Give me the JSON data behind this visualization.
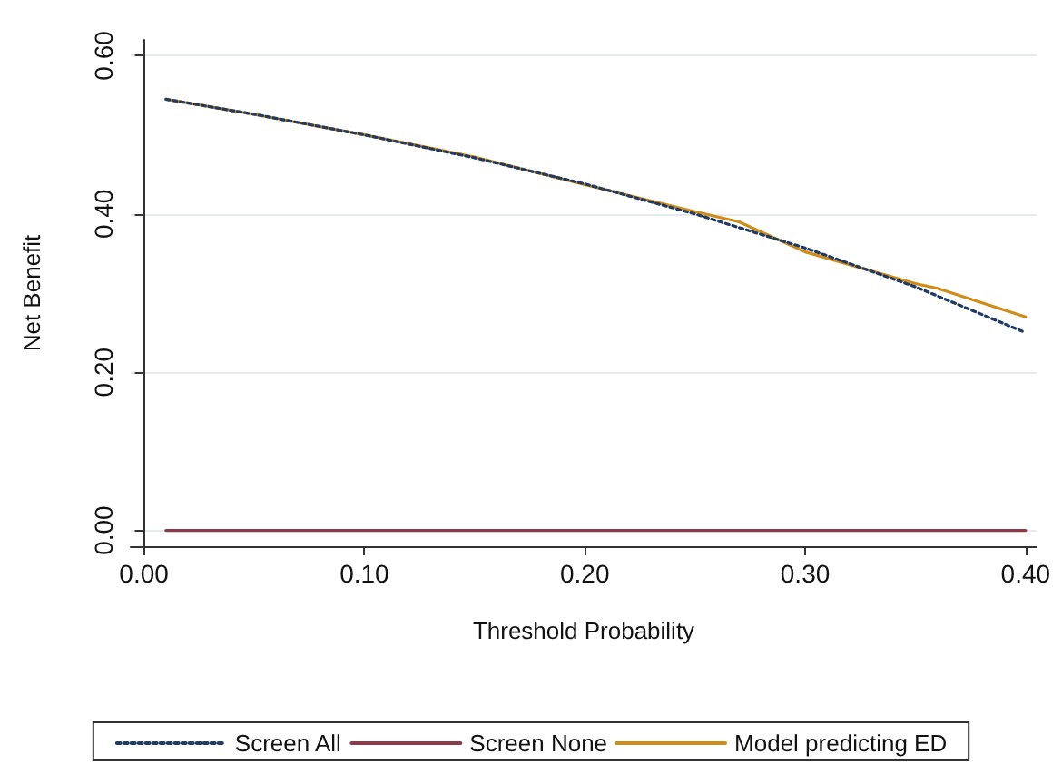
{
  "chart_data": {
    "type": "line",
    "xlabel": "Threshold Probability",
    "ylabel": "Net Benefit",
    "xlim": [
      -0.006,
      0.405
    ],
    "xticks": [
      {
        "value": 0,
        "label": "0.00"
      },
      {
        "value": 0.1,
        "label": "0.10"
      },
      {
        "value": 0.2,
        "label": "0.20"
      },
      {
        "value": 0.3,
        "label": "0.30"
      },
      {
        "value": 0.4,
        "label": "0.40"
      }
    ],
    "ylim": [
      -0.02,
      0.62
    ],
    "yticks": [
      {
        "value": 0,
        "label": "0.00"
      },
      {
        "value": 0.2,
        "label": "0.20"
      },
      {
        "value": 0.4,
        "label": "0.40"
      },
      {
        "value": 0.6,
        "label": "0.60"
      }
    ],
    "grid": "y",
    "legend": "bottom",
    "marker": "none",
    "series": [
      {
        "name": "Screen All",
        "color": "#1f3a63",
        "line_style": "dashed",
        "x": [
          0.01,
          0.05,
          0.1,
          0.15,
          0.2,
          0.25,
          0.3,
          0.35,
          0.4
        ],
        "values": [
          0.545,
          0.526,
          0.5,
          0.471,
          0.438,
          0.4,
          0.357,
          0.308,
          0.25
        ]
      },
      {
        "name": "Screen None",
        "color": "#8b3a4a",
        "line_style": "solid",
        "x": [
          0.01,
          0.4
        ],
        "values": [
          0,
          0
        ]
      },
      {
        "name": "Model predicting ED",
        "color": "#d08c18",
        "line_style": "solid",
        "x": [
          0.01,
          0.05,
          0.1,
          0.15,
          0.2,
          0.25,
          0.27,
          0.3,
          0.35,
          0.36,
          0.4
        ],
        "values": [
          0.545,
          0.526,
          0.5,
          0.472,
          0.437,
          0.403,
          0.39,
          0.352,
          0.312,
          0.306,
          0.27
        ]
      }
    ]
  }
}
